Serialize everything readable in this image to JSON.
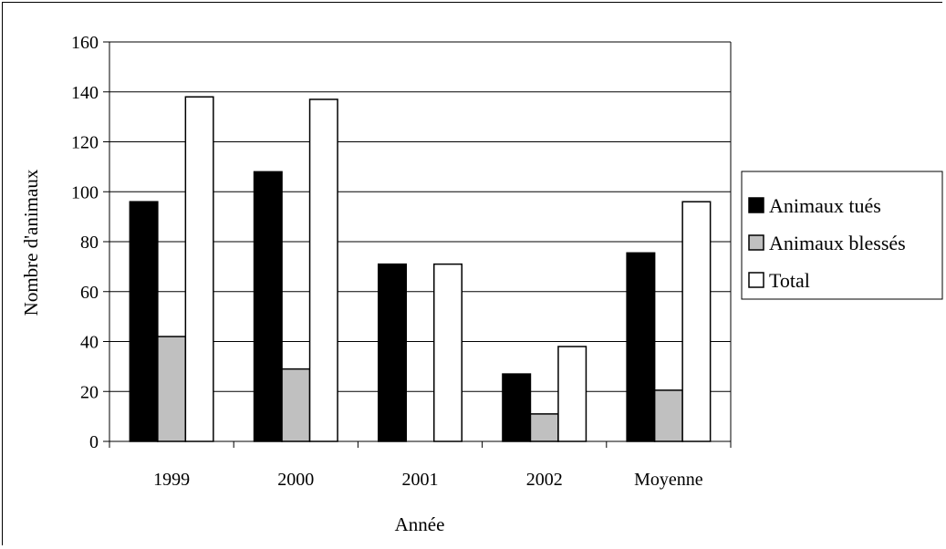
{
  "chart_data": {
    "type": "bar",
    "title": "",
    "xlabel": "Année",
    "ylabel": "Nombre d'animaux",
    "categories": [
      "1999",
      "2000",
      "2001",
      "2002",
      "Moyenne"
    ],
    "series": [
      {
        "name": "Animaux tués",
        "values": [
          96,
          108,
          71,
          27,
          75.5
        ],
        "color": "#000000"
      },
      {
        "name": "Animaux blessés",
        "values": [
          42,
          29,
          0,
          11,
          20.5
        ],
        "color": "#c0c0c0"
      },
      {
        "name": "Total",
        "values": [
          138,
          137,
          71,
          38,
          96
        ],
        "color": "#ffffff"
      }
    ],
    "ylim": [
      0,
      160
    ],
    "yticks": [
      0,
      20,
      40,
      60,
      80,
      100,
      120,
      140,
      160
    ],
    "grid": true,
    "legend": "right"
  }
}
